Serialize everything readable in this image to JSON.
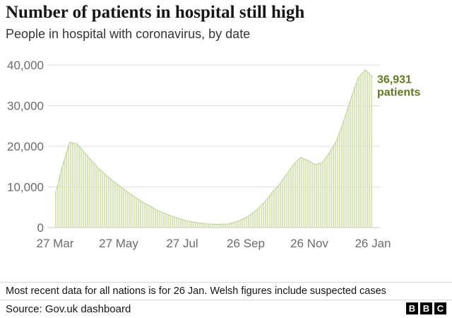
{
  "header": {
    "title": "Number of patients in hospital still high",
    "subtitle": "People in hospital with coronavirus, by date"
  },
  "chart_data": {
    "type": "bar",
    "title": "Number of patients in hospital still high",
    "xlabel": "",
    "ylabel": "",
    "ylim": [
      0,
      40000
    ],
    "yticks": [
      {
        "value": 0,
        "label": "0"
      },
      {
        "value": 10000,
        "label": "10,000"
      },
      {
        "value": 20000,
        "label": "20,000"
      },
      {
        "value": 30000,
        "label": "30,000"
      },
      {
        "value": 40000,
        "label": "40,000"
      }
    ],
    "xticks": [
      {
        "label": "27 Mar",
        "pos": 0.0
      },
      {
        "label": "27 May",
        "pos": 0.2
      },
      {
        "label": "27 Jul",
        "pos": 0.4
      },
      {
        "label": "26 Sep",
        "pos": 0.6
      },
      {
        "label": "26 Nov",
        "pos": 0.8
      },
      {
        "label": "26 Jan",
        "pos": 1.0
      }
    ],
    "values": [
      8000,
      15000,
      21000,
      20600,
      18600,
      16600,
      14600,
      13000,
      11500,
      10100,
      8800,
      7600,
      6400,
      5400,
      4400,
      3600,
      2900,
      2300,
      1800,
      1400,
      1100,
      900,
      800,
      800,
      900,
      1400,
      2100,
      3100,
      4500,
      6300,
      8500,
      10500,
      13000,
      15500,
      17300,
      16500,
      15500,
      16000,
      18500,
      21500,
      26500,
      32000,
      37000,
      38800,
      36931
    ],
    "annotation": {
      "line1": "36,931",
      "line2": "patients",
      "value": 36931,
      "color": "#5f7a1e"
    },
    "bar_color": "#d8e4ba",
    "bar_edge_color": "#bdd092",
    "grid_color": "#dedede",
    "baseline_color": "#c4c4c4",
    "tick_color": "#6b6b6b",
    "grid": true,
    "legend": "none"
  },
  "footer": {
    "note": "Most recent data for all nations is for 26 Jan. Welsh figures include suspected cases",
    "source": "Source: Gov.uk dashboard",
    "logo_letters": [
      "B",
      "B",
      "C"
    ]
  }
}
